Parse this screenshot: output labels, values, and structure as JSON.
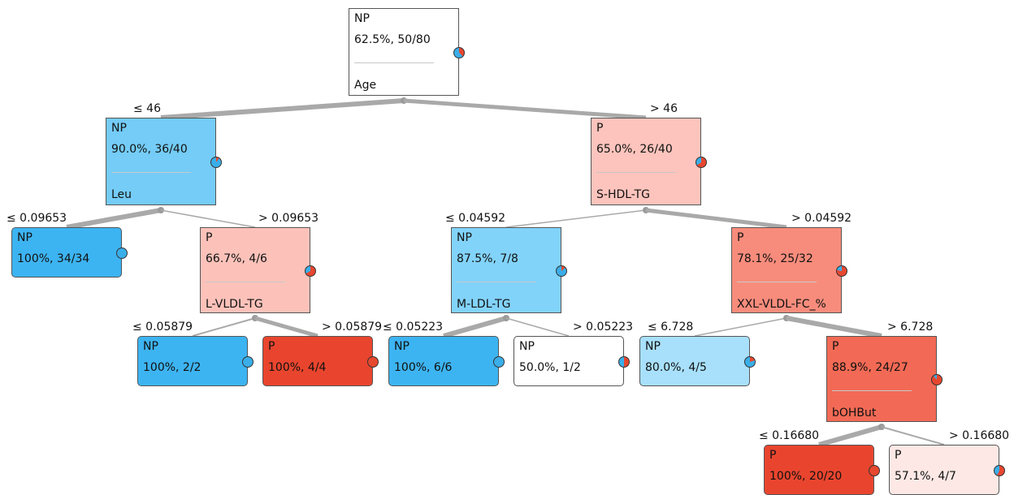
{
  "colors": {
    "NP": "#3aaee8",
    "P": "#e6472f"
  },
  "nodes": {
    "root": {
      "cls": "NP",
      "stat": "62.5%, 50/80",
      "attr": "Age",
      "color": "#ffffff",
      "pie_p": 0.375
    },
    "n1": {
      "cls": "NP",
      "stat": "90.0%, 36/40",
      "attr": "Leu",
      "color": "#74ccf7",
      "pie_p": 0.1
    },
    "n2": {
      "cls": "P",
      "stat": "65.0%, 26/40",
      "attr": "S-HDL-TG",
      "color": "#fcc4bc",
      "pie_p": 0.65
    },
    "n3": {
      "cls": "NP",
      "stat": "100%, 34/34",
      "attr": "",
      "color": "#3db4f2",
      "pie_p": 0
    },
    "n4": {
      "cls": "P",
      "stat": "66.7%, 4/6",
      "attr": "L-VLDL-TG",
      "color": "#fcc2ba",
      "pie_p": 0.667
    },
    "n5": {
      "cls": "NP",
      "stat": "87.5%, 7/8",
      "attr": "M-LDL-TG",
      "color": "#82d3fa",
      "pie_p": 0.125
    },
    "n6": {
      "cls": "P",
      "stat": "78.1%, 25/32",
      "attr": "XXL-VLDL-FC_%",
      "color": "#f88c7c",
      "pie_p": 0.781
    },
    "n7": {
      "cls": "NP",
      "stat": "100%, 2/2",
      "attr": "",
      "color": "#3db4f2",
      "pie_p": 0
    },
    "n8": {
      "cls": "P",
      "stat": "100%, 4/4",
      "attr": "",
      "color": "#e9452e",
      "pie_p": 1
    },
    "n9": {
      "cls": "NP",
      "stat": "100%, 6/6",
      "attr": "",
      "color": "#3db4f2",
      "pie_p": 0
    },
    "n10": {
      "cls": "NP",
      "stat": "50.0%, 1/2",
      "attr": "",
      "color": "#ffffff",
      "pie_p": 0.5
    },
    "n11": {
      "cls": "NP",
      "stat": "80.0%, 4/5",
      "attr": "",
      "color": "#a8e0fb",
      "pie_p": 0.2
    },
    "n12": {
      "cls": "P",
      "stat": "88.9%, 24/27",
      "attr": "bOHBut",
      "color": "#f26a55",
      "pie_p": 0.889
    },
    "n13": {
      "cls": "P",
      "stat": "100%, 20/20",
      "attr": "",
      "color": "#e9452e",
      "pie_p": 1
    },
    "n14": {
      "cls": "P",
      "stat": "57.1%, 4/7",
      "attr": "",
      "color": "#fde8e5",
      "pie_p": 0.571
    }
  },
  "edges": {
    "e1": "≤ 46",
    "e2": "> 46",
    "e3": "≤ 0.09653",
    "e4": "> 0.09653",
    "e5": "≤ 0.04592",
    "e6": "> 0.04592",
    "e7": "≤ 0.05879",
    "e8": "> 0.05879",
    "e9": "≤ 0.05223",
    "e10": "> 0.05223",
    "e11": "≤ 6.728",
    "e12": "> 6.728",
    "e13": "≤ 0.16680",
    "e14": "> 0.16680"
  }
}
